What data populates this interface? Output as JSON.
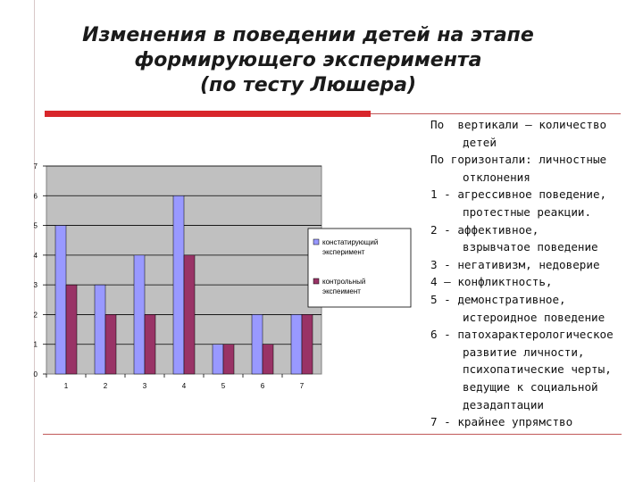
{
  "title": {
    "line1": "Изменения в поведении детей на этапе",
    "line2": "формирующего эксперимента",
    "line3": "(по тесту Люшера)"
  },
  "colors": {
    "accent_bar": "#d8262b",
    "series1": "#9999ff",
    "series2": "#993366",
    "plot_bg": "#c0c0c0"
  },
  "chart_data": {
    "type": "bar",
    "categories": [
      "1",
      "2",
      "3",
      "4",
      "5",
      "6",
      "7"
    ],
    "series": [
      {
        "name": "констатирующий эксперимент",
        "values": [
          5,
          3,
          4,
          6,
          1,
          2,
          2
        ]
      },
      {
        "name": "контрольный экспеимент",
        "values": [
          3,
          2,
          2,
          4,
          1,
          1,
          2
        ]
      }
    ],
    "ylim": [
      0,
      7
    ],
    "yticks": [
      "0",
      "1",
      "2",
      "3",
      "4",
      "5",
      "6",
      "7"
    ],
    "grid": true,
    "legend": "right",
    "legend_lines": [
      [
        "констатирующий",
        "эксперимент"
      ],
      [
        "контрольный",
        "экспеимент"
      ]
    ]
  },
  "notes": [
    {
      "text": "По  вертикали – количество",
      "indent": false
    },
    {
      "text": "детей",
      "indent": true
    },
    {
      "text": "По горизонтали: личностные",
      "indent": false
    },
    {
      "text": "отклонения",
      "indent": true
    },
    {
      "text": "1 - агрессивное поведение,",
      "indent": false
    },
    {
      "text": "протестные реакции.",
      "indent": true
    },
    {
      "text": "2 - аффективное,",
      "indent": false
    },
    {
      "text": "взрывчатое поведение",
      "indent": true
    },
    {
      "text": "3 - негативизм, недоверие",
      "indent": false
    },
    {
      "text": "4 – конфликтность,",
      "indent": false
    },
    {
      "text": "5 - демонстративное,",
      "indent": false
    },
    {
      "text": "истероидное поведение",
      "indent": true
    },
    {
      "text": "6 - патохарактерологическое",
      "indent": false
    },
    {
      "text": "развитие личности,",
      "indent": true
    },
    {
      "text": "психопатические черты,",
      "indent": true
    },
    {
      "text": "ведущие к социальной",
      "indent": true
    },
    {
      "text": "дезадаптации",
      "indent": true
    },
    {
      "text": "7 - крайнее упрямство",
      "indent": false
    }
  ]
}
